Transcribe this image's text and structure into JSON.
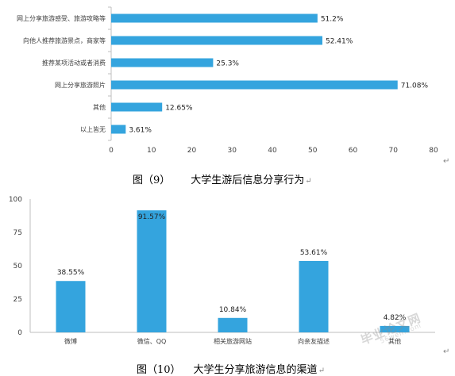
{
  "colors": {
    "bar": "#34A4DE",
    "axis": "#BFBFBF",
    "text": "#404040"
  },
  "captions": [
    {
      "number": "图（9）",
      "title": "大学生游后信息分享行为"
    },
    {
      "number": "图（10）",
      "title": "大学生分享旅游信息的渠道"
    }
  ],
  "watermark": {
    "text": "毕业论文网",
    "sub": "56wen.com"
  },
  "chart_data": [
    {
      "type": "bar",
      "orientation": "horizontal",
      "categories": [
        "网上分享旅游感受、旅游攻略等",
        "向他人推荐旅游景点，商家等",
        "推荐某项活动或者消费",
        "网上分享旅游照片",
        "其他",
        "以上皆无"
      ],
      "values": [
        51.2,
        52.41,
        25.3,
        71.08,
        12.65,
        3.61
      ],
      "labels": [
        "51.2%",
        "52.41%",
        "25.3%",
        "71.08%",
        "12.65%",
        "3.61%"
      ],
      "xlim": [
        0,
        80
      ],
      "xticks": [
        0,
        10,
        20,
        30,
        40,
        50,
        60,
        70,
        80
      ],
      "grid": false
    },
    {
      "type": "bar",
      "orientation": "vertical",
      "categories": [
        "微博",
        "微信、QQ",
        "相关旅游网站",
        "向亲友描述",
        "其他"
      ],
      "values": [
        38.55,
        91.57,
        10.84,
        53.61,
        4.82
      ],
      "labels": [
        "38.55%",
        "91.57%",
        "10.84%",
        "53.61%",
        "4.82%"
      ],
      "ylim": [
        0,
        100
      ],
      "yticks": [
        0,
        25,
        50,
        75,
        100
      ],
      "grid": false
    }
  ]
}
